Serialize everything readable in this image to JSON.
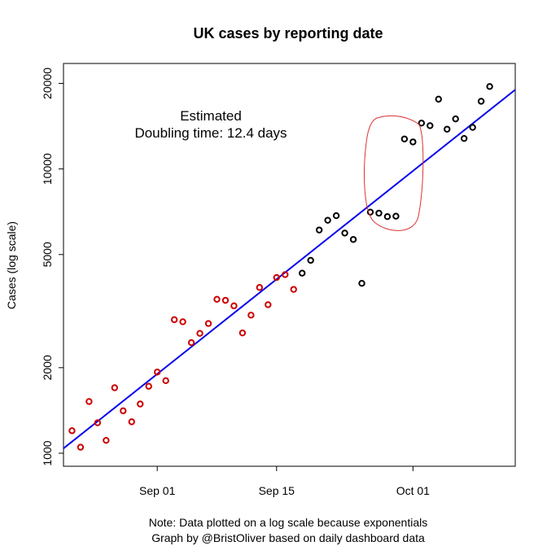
{
  "chart_data": {
    "type": "scatter",
    "title": "UK cases by reporting date",
    "ylabel": "Cases (log scale)",
    "xlabel": "",
    "y_scale": "log",
    "ylim": [
      900,
      23500
    ],
    "xlim": [
      "2020-08-21",
      "2020-10-13"
    ],
    "y_ticks": [
      1000,
      2000,
      5000,
      10000,
      20000
    ],
    "y_tick_labels": [
      "1000",
      "2000",
      "5000",
      "10000",
      "20000"
    ],
    "x_ticks": [
      "2020-09-01",
      "2020-09-15",
      "2020-10-01"
    ],
    "x_tick_labels": [
      "Sep 01",
      "Sep 15",
      "Oct 01"
    ],
    "grid": false,
    "series": [
      {
        "color": "#cc0000",
        "points": [
          {
            "x": "2020-08-22",
            "y": 1200
          },
          {
            "x": "2020-08-23",
            "y": 1050
          },
          {
            "x": "2020-08-24",
            "y": 1520
          },
          {
            "x": "2020-08-25",
            "y": 1280
          },
          {
            "x": "2020-08-26",
            "y": 1110
          },
          {
            "x": "2020-08-27",
            "y": 1700
          },
          {
            "x": "2020-08-28",
            "y": 1410
          },
          {
            "x": "2020-08-29",
            "y": 1290
          },
          {
            "x": "2020-08-30",
            "y": 1490
          },
          {
            "x": "2020-08-31",
            "y": 1720
          },
          {
            "x": "2020-09-01",
            "y": 1930
          },
          {
            "x": "2020-09-02",
            "y": 1800
          },
          {
            "x": "2020-09-03",
            "y": 2950
          },
          {
            "x": "2020-09-04",
            "y": 2900
          },
          {
            "x": "2020-09-05",
            "y": 2450
          },
          {
            "x": "2020-09-06",
            "y": 2640
          },
          {
            "x": "2020-09-07",
            "y": 2860
          },
          {
            "x": "2020-09-08",
            "y": 3480
          },
          {
            "x": "2020-09-09",
            "y": 3450
          },
          {
            "x": "2020-09-10",
            "y": 3300
          },
          {
            "x": "2020-09-11",
            "y": 2650
          },
          {
            "x": "2020-09-12",
            "y": 3060
          },
          {
            "x": "2020-09-13",
            "y": 3830
          },
          {
            "x": "2020-09-14",
            "y": 3330
          },
          {
            "x": "2020-09-15",
            "y": 4150
          },
          {
            "x": "2020-09-16",
            "y": 4250
          },
          {
            "x": "2020-09-17",
            "y": 3770
          }
        ]
      },
      {
        "color": "#000000",
        "points": [
          {
            "x": "2020-09-18",
            "y": 4300
          },
          {
            "x": "2020-09-19",
            "y": 4770
          },
          {
            "x": "2020-09-20",
            "y": 6100
          },
          {
            "x": "2020-09-21",
            "y": 6600
          },
          {
            "x": "2020-09-22",
            "y": 6850
          },
          {
            "x": "2020-09-23",
            "y": 5950
          },
          {
            "x": "2020-09-24",
            "y": 5650
          },
          {
            "x": "2020-09-25",
            "y": 3960
          },
          {
            "x": "2020-09-26",
            "y": 7050
          },
          {
            "x": "2020-09-27",
            "y": 6990
          },
          {
            "x": "2020-09-28",
            "y": 6800
          },
          {
            "x": "2020-09-29",
            "y": 6820
          },
          {
            "x": "2020-09-30",
            "y": 12750
          },
          {
            "x": "2020-10-01",
            "y": 12450
          },
          {
            "x": "2020-10-02",
            "y": 14500
          },
          {
            "x": "2020-10-03",
            "y": 14200
          },
          {
            "x": "2020-10-04",
            "y": 17600
          },
          {
            "x": "2020-10-05",
            "y": 13800
          },
          {
            "x": "2020-10-06",
            "y": 15000
          },
          {
            "x": "2020-10-07",
            "y": 12800
          },
          {
            "x": "2020-10-08",
            "y": 14000
          },
          {
            "x": "2020-10-09",
            "y": 17300
          },
          {
            "x": "2020-10-10",
            "y": 19500
          }
        ]
      }
    ],
    "trend_line": {
      "color": "#0000ee",
      "x": [
        "2020-08-21",
        "2020-10-13"
      ],
      "y": [
        1040,
        19000
      ]
    },
    "annotations": {
      "estimate_line1": "Estimated",
      "estimate_line2": "Doubling time: 12.4 days",
      "highlight_color": "#dd3333"
    },
    "footer": {
      "line1": "Note: Data plotted on a log scale because exponentials",
      "line2": "Graph by @BristOliver based on daily dashboard data"
    }
  }
}
